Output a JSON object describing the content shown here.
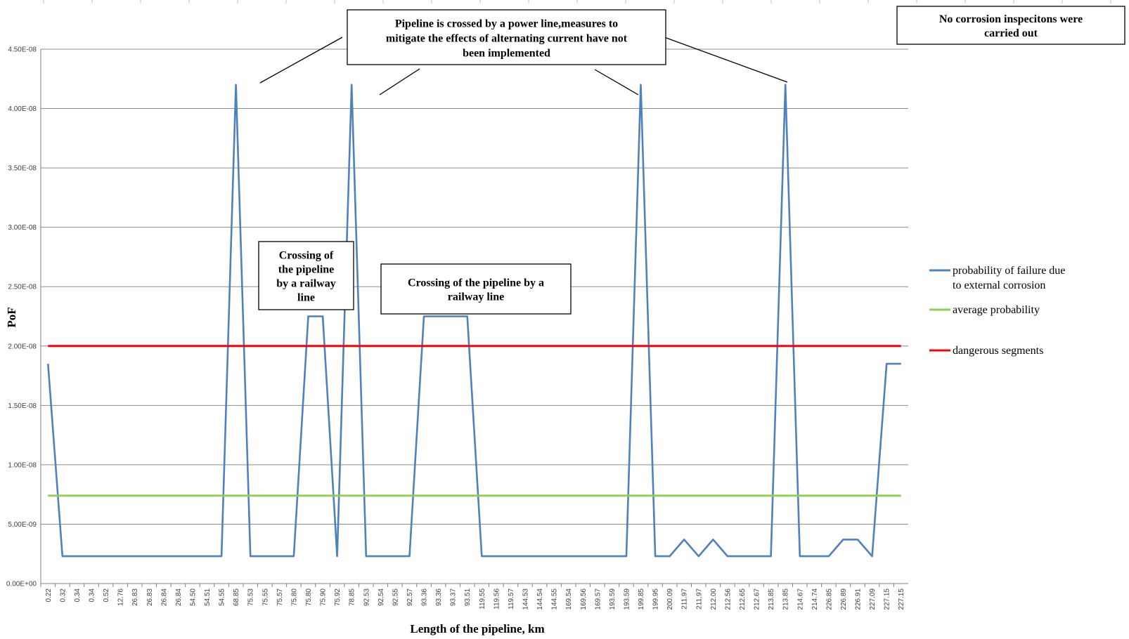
{
  "chart_data": {
    "type": "line",
    "xlabel": "Length of the pipeline, km",
    "ylabel": "PoF",
    "y_ticks": [
      "0.00E+00",
      "5.00E-09",
      "1.00E-08",
      "1.50E-08",
      "2.00E-08",
      "2.50E-08",
      "3.00E-08",
      "3.50E-08",
      "4.00E-08",
      "4.50E-08"
    ],
    "ylim": [
      0,
      4.5e-08
    ],
    "grid": "horizontal",
    "legend_position": "right",
    "categories": [
      "0.22",
      "0.32",
      "0.34",
      "0.34",
      "0.52",
      "12.76",
      "26.83",
      "26.83",
      "26.84",
      "26.84",
      "54.50",
      "54.51",
      "54.55",
      "68.85",
      "75.53",
      "75.55",
      "75.57",
      "75.80",
      "75.80",
      "75.90",
      "75.92",
      "78.85",
      "92.53",
      "92.54",
      "92.55",
      "92.57",
      "93.36",
      "93.36",
      "93.37",
      "93.51",
      "119.55",
      "119.56",
      "119.57",
      "144.53",
      "144.54",
      "144.55",
      "169.54",
      "169.56",
      "169.57",
      "193.59",
      "193.59",
      "199.85",
      "199.95",
      "200.09",
      "211.97",
      "211.97",
      "212.00",
      "212.56",
      "212.65",
      "212.67",
      "213.85",
      "213.85",
      "214.67",
      "214.74",
      "226.85",
      "226.89",
      "226.91",
      "227.09",
      "227.15",
      "227.15"
    ],
    "series": [
      {
        "name": "probability of failure due to external corrosion",
        "color": "#4f81bd",
        "values": [
          1.85e-08,
          2.3e-09,
          2.3e-09,
          2.3e-09,
          2.3e-09,
          2.3e-09,
          2.3e-09,
          2.3e-09,
          2.3e-09,
          2.3e-09,
          2.3e-09,
          2.3e-09,
          2.3e-09,
          4.2e-08,
          2.3e-09,
          2.3e-09,
          2.3e-09,
          2.3e-09,
          2.25e-08,
          2.25e-08,
          2.3e-09,
          4.2e-08,
          2.3e-09,
          2.3e-09,
          2.3e-09,
          2.3e-09,
          2.25e-08,
          2.25e-08,
          2.25e-08,
          2.25e-08,
          2.3e-09,
          2.3e-09,
          2.3e-09,
          2.3e-09,
          2.3e-09,
          2.3e-09,
          2.3e-09,
          2.3e-09,
          2.3e-09,
          2.3e-09,
          2.3e-09,
          4.2e-08,
          2.3e-09,
          2.3e-09,
          3.7e-09,
          2.3e-09,
          3.7e-09,
          2.3e-09,
          2.3e-09,
          2.3e-09,
          2.3e-09,
          4.2e-08,
          2.3e-09,
          2.3e-09,
          2.3e-09,
          3.7e-09,
          3.7e-09,
          2.3e-09,
          1.85e-08,
          1.85e-08
        ]
      },
      {
        "name": "average probability",
        "color": "#92d050",
        "constant": 7.4e-09
      },
      {
        "name": "dangerous segments",
        "color": "#ff0000",
        "constant": 2e-08
      }
    ],
    "annotations": {
      "power_line": "Pipeline is crossed by a power line,measures to mitigate the effects of alternating current have not been implemented",
      "power_line_lines": [
        "Pipeline is crossed by a power line,measures to",
        "mitigate the effects of alternating current have not",
        "been implemented"
      ],
      "railway_1_lines": [
        "Crossing of",
        "the pipeline",
        "by a railway",
        "line"
      ],
      "railway_2_lines": [
        "Crossing of the pipeline by a",
        "railway line"
      ],
      "no_inspection_lines": [
        "No corrosion inspecitons were",
        "carried out"
      ]
    },
    "legend": {
      "series_0_lines": [
        "probability of failure due",
        "to external corrosion"
      ],
      "series_1_lines": [
        "average probability"
      ],
      "series_2_lines": [
        "dangerous segments"
      ]
    }
  }
}
